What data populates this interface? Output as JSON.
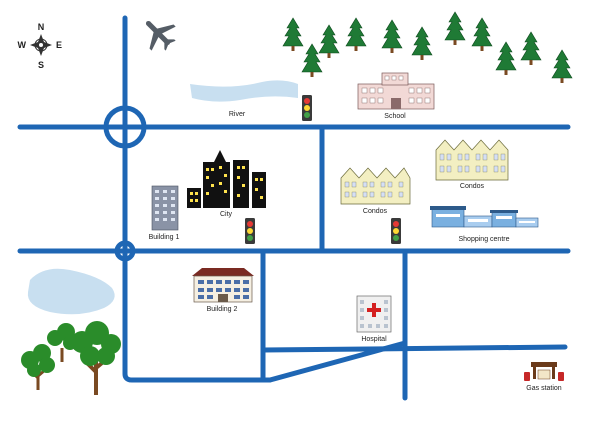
{
  "compass": {
    "north": "N",
    "south": "S",
    "east": "E",
    "west": "W"
  },
  "labels": {
    "river": "River",
    "school": "School",
    "city": "City",
    "building1": "Building 1",
    "condos_left": "Condos",
    "condos_right": "Condos",
    "shopping_centre": "Shopping centre",
    "building2": "Building 2",
    "hospital": "Hospital",
    "gas_station": "Gas station"
  },
  "icons": [
    "compass-rose-icon",
    "airplane-icon",
    "traffic-light-icon",
    "pine-tree-icon",
    "deciduous-tree-icon",
    "hospital-cross-icon",
    "gas-pump-icon"
  ],
  "colors": {
    "road": "#1e66b4",
    "water": "#c8dff0",
    "pine": "#1f7a35",
    "tree_green": "#2a8c2a",
    "trunk": "#7a4a22",
    "school": "#f2d9d6",
    "condo": "#f3efc2",
    "city": "#111111",
    "window_yellow": "#ffe34d",
    "building1": "#8a93a6",
    "mall": "#7ab0e0",
    "hospital_cross": "#d42020",
    "gas_red": "#c62828"
  }
}
